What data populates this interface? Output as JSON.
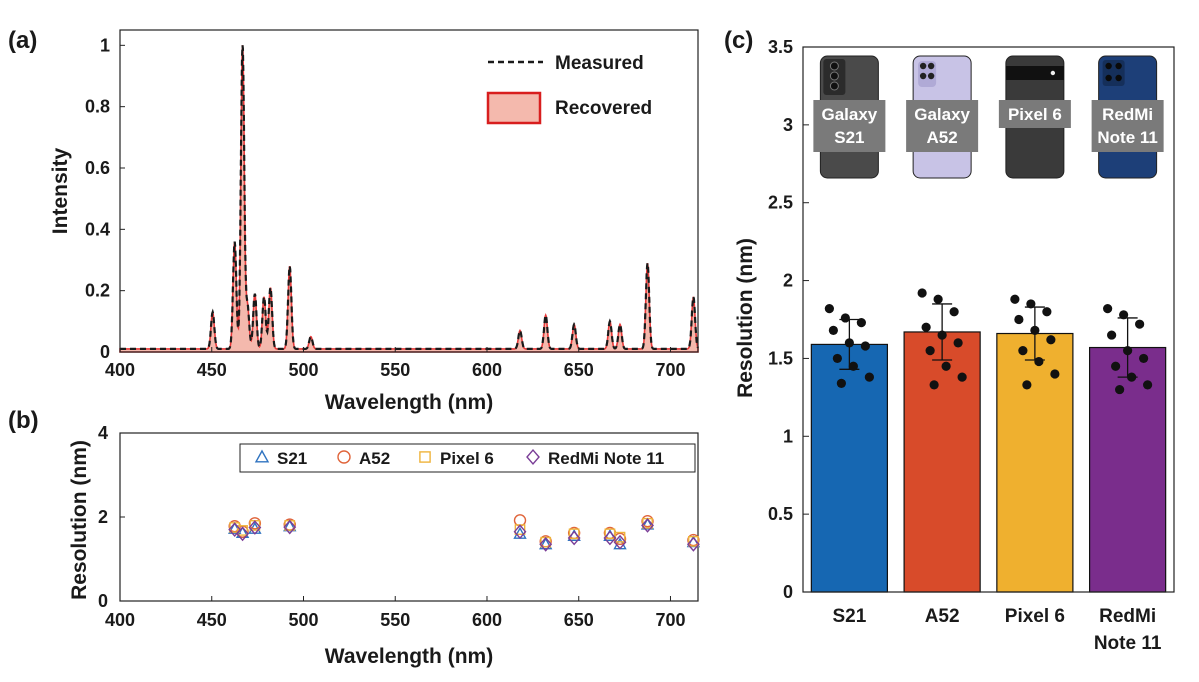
{
  "chart_data": [
    {
      "panel": "(a)",
      "type": "line",
      "xlabel": "Wavelength (nm)",
      "ylabel": "Intensity",
      "xlim": [
        400,
        715
      ],
      "ylim": [
        0,
        1.05
      ],
      "xticks": [
        400,
        450,
        500,
        550,
        600,
        650,
        700
      ],
      "yticks": [
        0,
        0.2,
        0.4,
        0.6,
        0.8,
        1
      ],
      "ytick_labels": [
        "0",
        "0.2",
        "0.4",
        "0.6",
        "0.8",
        "1"
      ],
      "legend_position": "top-right",
      "series": [
        {
          "name": "Measured",
          "style": "dashed",
          "color": "#1a1a1a"
        },
        {
          "name": "Recovered",
          "style": "filled-area",
          "color": "#e83a3a",
          "fill": "#f4b9ad"
        }
      ],
      "baseline": 0.01,
      "peaks": [
        {
          "x": 450.5,
          "y": 0.12
        },
        {
          "x": 462.5,
          "y": 0.35
        },
        {
          "x": 466.8,
          "y": 1.0
        },
        {
          "x": 469.5,
          "y": 0.14
        },
        {
          "x": 473.5,
          "y": 0.18
        },
        {
          "x": 478.5,
          "y": 0.17
        },
        {
          "x": 482.0,
          "y": 0.2
        },
        {
          "x": 492.5,
          "y": 0.27
        },
        {
          "x": 504.0,
          "y": 0.04
        },
        {
          "x": 618.0,
          "y": 0.06
        },
        {
          "x": 632.0,
          "y": 0.11
        },
        {
          "x": 647.5,
          "y": 0.08
        },
        {
          "x": 667.0,
          "y": 0.09
        },
        {
          "x": 672.5,
          "y": 0.08
        },
        {
          "x": 687.5,
          "y": 0.28
        },
        {
          "x": 712.5,
          "y": 0.17
        }
      ]
    },
    {
      "panel": "(b)",
      "type": "scatter",
      "xlabel": "Wavelength (nm)",
      "ylabel": "Resolution (nm)",
      "xlim": [
        400,
        715
      ],
      "ylim": [
        0,
        4
      ],
      "xticks": [
        400,
        450,
        500,
        550,
        600,
        650,
        700
      ],
      "yticks": [
        0,
        2,
        4
      ],
      "legend_position": "top-right",
      "x": [
        462.5,
        466.8,
        473.5,
        492.5,
        618,
        632,
        647.5,
        667,
        672.5,
        687.5,
        712.5
      ],
      "series": [
        {
          "name": "S21",
          "marker": "triangle",
          "color": "#2f73c0",
          "values": [
            1.72,
            1.62,
            1.72,
            1.78,
            1.6,
            1.35,
            1.55,
            1.55,
            1.35,
            1.82,
            1.4
          ]
        },
        {
          "name": "A52",
          "marker": "circle",
          "color": "#e0643a",
          "values": [
            1.78,
            1.65,
            1.85,
            1.82,
            1.92,
            1.42,
            1.62,
            1.62,
            1.48,
            1.9,
            1.45
          ]
        },
        {
          "name": "Pixel 6",
          "marker": "square",
          "color": "#eeb33c",
          "values": [
            1.75,
            1.68,
            1.8,
            1.8,
            1.7,
            1.4,
            1.6,
            1.6,
            1.52,
            1.85,
            1.42
          ]
        },
        {
          "name": "RedMi Note 11",
          "marker": "diamond",
          "color": "#7a3d97",
          "values": [
            1.7,
            1.6,
            1.75,
            1.76,
            1.65,
            1.35,
            1.5,
            1.5,
            1.4,
            1.8,
            1.35
          ]
        }
      ]
    },
    {
      "panel": "(c)",
      "type": "bar",
      "ylabel": "Resolution (nm)",
      "ylim": [
        0,
        3.5
      ],
      "yticks": [
        0,
        0.5,
        1,
        1.5,
        2,
        2.5,
        3,
        3.5
      ],
      "ytick_labels": [
        "0",
        "0.5",
        "1",
        "1.5",
        "2",
        "2.5",
        "3",
        "3.5"
      ],
      "categories": [
        "S21",
        "A52",
        "Pixel 6",
        "RedMi Note 11"
      ],
      "category_lines": [
        [
          "S21"
        ],
        [
          "A52"
        ],
        [
          "Pixel 6"
        ],
        [
          "RedMi",
          "Note 11"
        ]
      ],
      "values": [
        1.59,
        1.67,
        1.66,
        1.57
      ],
      "errors": [
        0.16,
        0.18,
        0.17,
        0.19
      ],
      "colors": [
        "#1667b2",
        "#d84b2a",
        "#efb02f",
        "#7a2d8c"
      ],
      "points": [
        [
          1.82,
          1.76,
          1.73,
          1.68,
          1.6,
          1.58,
          1.5,
          1.45,
          1.38,
          1.34
        ],
        [
          1.92,
          1.88,
          1.8,
          1.7,
          1.65,
          1.6,
          1.55,
          1.45,
          1.38,
          1.33
        ],
        [
          1.88,
          1.85,
          1.8,
          1.75,
          1.68,
          1.62,
          1.55,
          1.48,
          1.4,
          1.33
        ],
        [
          1.82,
          1.78,
          1.72,
          1.65,
          1.55,
          1.5,
          1.45,
          1.38,
          1.33,
          1.3
        ]
      ],
      "phones": [
        {
          "name": "Galaxy S21",
          "lines": [
            "Galaxy",
            "S21"
          ],
          "body_color": "#4a4a4a"
        },
        {
          "name": "Galaxy A52",
          "lines": [
            "Galaxy",
            "A52"
          ],
          "body_color": "#c8c3e6"
        },
        {
          "name": "Pixel 6",
          "lines": [
            "Pixel 6"
          ],
          "body_color": "#3a3a3a"
        },
        {
          "name": "RedMi Note 11",
          "lines": [
            "RedMi",
            "Note 11"
          ],
          "body_color": "#1d3f78"
        }
      ]
    }
  ]
}
